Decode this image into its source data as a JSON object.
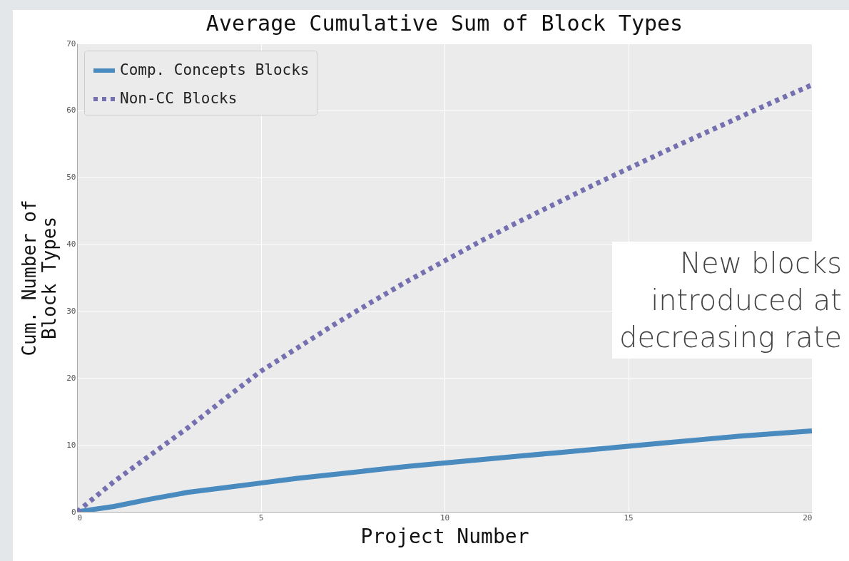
{
  "chart_data": {
    "type": "line",
    "title": "Average Cumulative Sum of Block Types",
    "xlabel": "Project Number",
    "ylabel": "Cum. Number of\nBlock Types",
    "x": [
      0,
      1,
      2,
      3,
      4,
      5,
      6,
      7,
      8,
      9,
      10,
      11,
      12,
      13,
      14,
      15,
      16,
      17,
      18,
      19,
      20
    ],
    "series": [
      {
        "name": "Comp. Concepts Blocks",
        "color": "#4a8bbf",
        "line_style": "solid",
        "values": [
          0,
          0.8,
          1.9,
          2.9,
          3.6,
          4.3,
          5,
          5.6,
          6.2,
          6.8,
          7.3,
          7.8,
          8.3,
          8.8,
          9.3,
          9.8,
          10.3,
          10.8,
          11.3,
          11.7,
          12.1
        ]
      },
      {
        "name": "Non-CC Blocks",
        "color": "#7570b0",
        "line_style": "dotted",
        "values": [
          0,
          4.5,
          8.5,
          12.5,
          16.8,
          21,
          24.5,
          28,
          31.3,
          34.5,
          37.5,
          40.5,
          43.3,
          46,
          48.7,
          51.3,
          53.9,
          56.4,
          58.9,
          61.4,
          63.8
        ]
      }
    ],
    "xlim": [
      0,
      20
    ],
    "xticks": [
      0,
      5,
      10,
      15,
      20
    ],
    "ylim": [
      0,
      70
    ],
    "yticks": [
      0,
      10,
      20,
      30,
      40,
      50,
      60,
      70
    ],
    "grid": true,
    "legend": "top left",
    "annotations": [
      "New blocks\nintroduced at\ndecreasing rate"
    ]
  }
}
